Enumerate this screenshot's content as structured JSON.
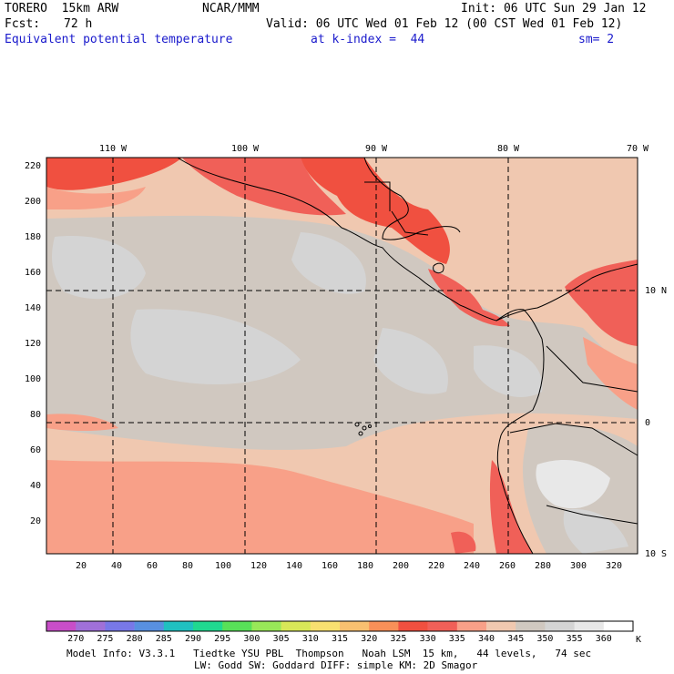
{
  "header": {
    "model": "TORERO  15km ARW",
    "org": "NCAR/MMM",
    "init": "Init: 06 UTC Sun 29 Jan 12",
    "fcst_label": "Fcst:",
    "fcst_value": "72 h",
    "valid": "Valid: 06 UTC Wed 01 Feb 12 (00 CST Wed 01 Feb 12)",
    "field": "Equivalent potential temperature",
    "kindex": "at k-index =  44",
    "sm": "sm= 2"
  },
  "axes": {
    "top_lon_labels": [
      "110 W",
      "100 W",
      "90 W",
      "80 W",
      "70 W"
    ],
    "right_lat_labels": [
      "10 N",
      "0",
      "10 S"
    ],
    "left_y_labels": [
      "220",
      "200",
      "180",
      "160",
      "140",
      "120",
      "100",
      "80",
      "60",
      "40",
      "20"
    ],
    "bottom_x_labels": [
      "20",
      "40",
      "60",
      "80",
      "100",
      "120",
      "140",
      "160",
      "180",
      "200",
      "220",
      "240",
      "260",
      "280",
      "300",
      "320"
    ]
  },
  "colorbar": {
    "unit": "K",
    "labels": [
      "270",
      "275",
      "280",
      "285",
      "290",
      "295",
      "300",
      "305",
      "310",
      "315",
      "320",
      "325",
      "330",
      "335",
      "340",
      "345",
      "350",
      "355",
      "360"
    ],
    "colors": [
      "#c84ec8",
      "#a070d8",
      "#7878e8",
      "#5890e0",
      "#20c0c0",
      "#20d890",
      "#58e058",
      "#98e858",
      "#d8e858",
      "#f8e070",
      "#f8c070",
      "#f89058",
      "#f05040",
      "#f06058",
      "#f8a088",
      "#f0c8b0",
      "#d0c8c0",
      "#d4d4d4",
      "#e8e8e8",
      "#ffffff"
    ]
  },
  "footer": {
    "line1": "Model Info: V3.3.1   Tiedtke YSU PBL  Thompson   Noah LSM  15 km,   44 levels,   74 sec",
    "line2": "LW: Godd SW: Goddard DIFF: simple KM: 2D Smagor"
  }
}
